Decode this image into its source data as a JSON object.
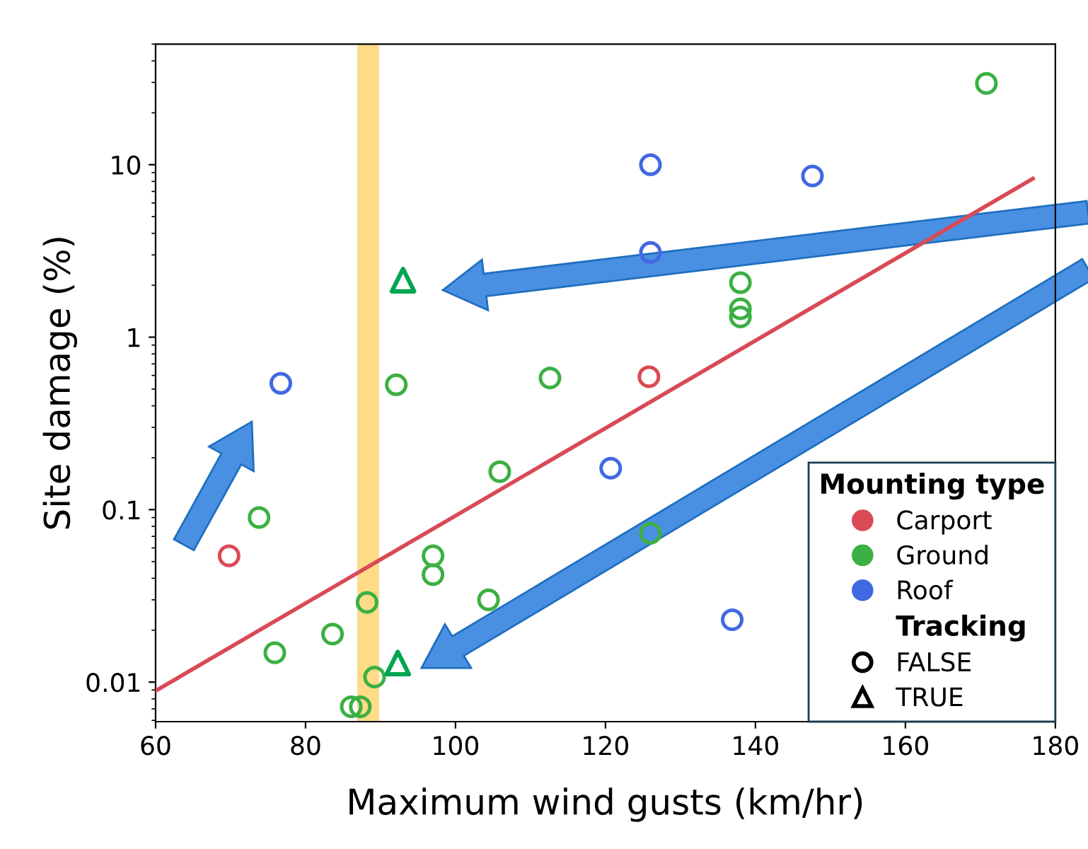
{
  "chart_data": {
    "type": "scatter",
    "xlabel": "Maximum wind gusts (km/hr)",
    "ylabel": "Site damage (%)",
    "legend_title": "Mounting type",
    "log": "y",
    "grid": false,
    "legend": "bottom right",
    "xlim": [
      60,
      180
    ],
    "xticks": [
      60,
      80,
      100,
      120,
      140,
      160,
      180
    ],
    "ylim": [
      0.0059,
      50
    ],
    "yticks": [
      0.01,
      0.1,
      1,
      10
    ],
    "series": [
      {
        "name": "Carport",
        "color": "#d94a55",
        "marker": "circle",
        "x": [
          69.8,
          125.8
        ],
        "values": [
          0.054,
          0.59
        ]
      },
      {
        "name": "Ground",
        "color": "#3cb043",
        "marker": "circle",
        "x": [
          73.8,
          75.9,
          83.6,
          88.2,
          86.1,
          87.3,
          89.2,
          92.1,
          97.0,
          97.0,
          104.4,
          105.9,
          112.6,
          126.0,
          138.0,
          138.0,
          138.0,
          170.8
        ],
        "values": [
          0.09,
          0.0148,
          0.019,
          0.029,
          0.0072,
          0.0072,
          0.0107,
          0.53,
          0.054,
          0.042,
          0.03,
          0.166,
          0.58,
          0.073,
          2.07,
          1.46,
          1.31,
          29.6
        ]
      },
      {
        "name": "Roof",
        "color": "#4169e1",
        "marker": "circle",
        "x": [
          76.7,
          126.0,
          126.0,
          147.6,
          120.7,
          136.9
        ],
        "values": [
          0.54,
          10.0,
          3.1,
          8.6,
          0.174,
          0.023
        ]
      },
      {
        "color": "#00a550",
        "marker": "triangle",
        "x": [
          93.0,
          92.3
        ],
        "values": [
          2.14,
          0.0129
        ]
      },
      {
        "type": "line",
        "color": "#d94a55",
        "x": [
          60,
          177
        ],
        "values": [
          0.0089,
          8.3
        ]
      }
    ],
    "bands": [
      {
        "axis": "x",
        "from": 86.9,
        "to": 89.8,
        "color": "#fdd77a"
      }
    ],
    "annotations": [
      "Tracking",
      "FALSE",
      "TRUE"
    ]
  }
}
